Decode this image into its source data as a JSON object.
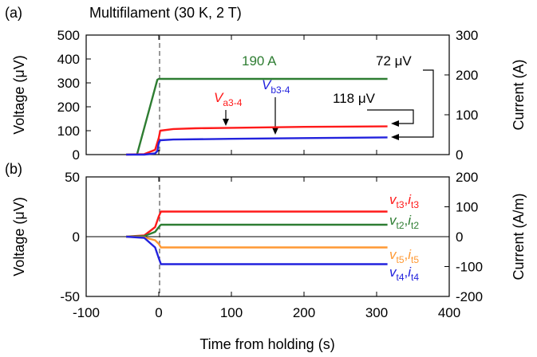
{
  "chart_data": [
    {
      "panel": "(a)",
      "title": "Multifilament (30 K, 2 T)",
      "type": "line",
      "ylabel_left": "Voltage (μV)",
      "ylabel_right": "Current (A)",
      "xlim": [
        -100,
        400
      ],
      "ylim_left": [
        0,
        500
      ],
      "ylim_right": [
        0,
        300
      ],
      "yticks_left": [
        "0",
        "100",
        "200",
        "300",
        "400",
        "500"
      ],
      "yticks_right": [
        "0",
        "100",
        "200",
        "300"
      ],
      "series": [
        {
          "name": "190 A",
          "color": "#2e7d32",
          "axis": "right",
          "x": [
            -30,
            -2,
            0,
            315
          ],
          "y": [
            0,
            188,
            190,
            190
          ]
        },
        {
          "name": "Va3-4",
          "color": "#ff1a1a",
          "axis": "left",
          "x": [
            -45,
            -20,
            -5,
            0,
            2,
            20,
            50,
            100,
            150,
            200,
            250,
            315
          ],
          "y": [
            0,
            2,
            20,
            70,
            100,
            107,
            110,
            112,
            114,
            116,
            117,
            118
          ]
        },
        {
          "name": "Vb3-4",
          "color": "#2222dd",
          "axis": "left",
          "x": [
            -45,
            -20,
            -5,
            -2,
            0,
            2,
            20,
            100,
            200,
            315
          ],
          "y": [
            0,
            0,
            5,
            15,
            50,
            60,
            63,
            66,
            69,
            72
          ]
        }
      ],
      "annotations": {
        "current_label": "190 A",
        "v1": {
          "main": "V",
          "sub": "a3-4"
        },
        "v2": {
          "main": "V",
          "sub": "b3-4"
        },
        "val1": "72 μV",
        "val2": "118 μV"
      }
    },
    {
      "panel": "(b)",
      "type": "line",
      "xlabel": "Time from holding (s)",
      "ylabel_left": "Voltage (μV)",
      "ylabel_right": "Current (A/m)",
      "xlim": [
        -100,
        400
      ],
      "ylim_left": [
        -50,
        50
      ],
      "ylim_right": [
        -200,
        200
      ],
      "xticks": [
        "-100",
        "0",
        "100",
        "200",
        "300",
        "400"
      ],
      "yticks_left": [
        "-50",
        "0",
        "50"
      ],
      "yticks_right": [
        "-200",
        "-100",
        "0",
        "100",
        "200"
      ],
      "series": [
        {
          "name": "vt3,it3",
          "color": "#ff1a1a",
          "x": [
            -45,
            -20,
            -5,
            0,
            3,
            20,
            315
          ],
          "y": [
            0,
            1,
            8,
            17,
            21,
            21,
            21
          ]
        },
        {
          "name": "vt2,it2",
          "color": "#2e7d32",
          "x": [
            -45,
            -20,
            -5,
            0,
            3,
            20,
            315
          ],
          "y": [
            0,
            0.5,
            4,
            8,
            10,
            10,
            10
          ]
        },
        {
          "name": "vt5,it5",
          "color": "#ff9933",
          "x": [
            -45,
            -20,
            -5,
            0,
            3,
            20,
            315
          ],
          "y": [
            0,
            -0.5,
            -3,
            -6,
            -9,
            -9,
            -9
          ]
        },
        {
          "name": "vt4,it4",
          "color": "#2222dd",
          "x": [
            -45,
            -20,
            -5,
            0,
            3,
            20,
            315
          ],
          "y": [
            0,
            -1,
            -9,
            -18,
            -23,
            -23,
            -23
          ]
        }
      ],
      "labels": [
        {
          "main": "v",
          "sub": "t3",
          "main2": "i",
          "sub2": "t3",
          "color": "#ff1a1a"
        },
        {
          "main": "v",
          "sub": "t2",
          "main2": "i",
          "sub2": "t2",
          "color": "#2e7d32"
        },
        {
          "main": "v",
          "sub": "t5",
          "main2": "i",
          "sub2": "t5",
          "color": "#ff9933"
        },
        {
          "main": "v",
          "sub": "t4",
          "main2": "i",
          "sub2": "t4",
          "color": "#2222dd"
        }
      ]
    }
  ]
}
